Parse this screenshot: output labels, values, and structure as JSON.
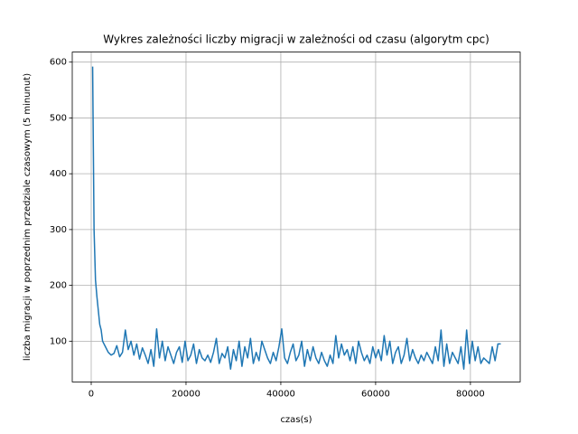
{
  "chart_data": {
    "type": "line",
    "title": "Wykres zależności liczby migracji w zależności od czasu (algorytm cpc)",
    "xlabel": "czas(s)",
    "ylabel": "liczba migracji w poprzednim  przedziale czasowym (5 minunut)",
    "xlim": [
      -4000,
      90500
    ],
    "ylim": [
      27,
      618
    ],
    "xticks": [
      0,
      20000,
      40000,
      60000,
      80000
    ],
    "yticks": [
      100,
      200,
      300,
      400,
      500,
      600
    ],
    "grid": true,
    "series": [
      {
        "color": "#1f77b4",
        "x": [
          300,
          600,
          900,
          1200,
          1500,
          1800,
          2100,
          2400,
          3000,
          3600,
          4200,
          4800,
          5400,
          6000,
          6600,
          7200,
          7800,
          8400,
          9000,
          9600,
          10200,
          10800,
          11400,
          12000,
          12600,
          13200,
          13800,
          14400,
          15000,
          15600,
          16200,
          16800,
          17400,
          18000,
          18600,
          19200,
          19800,
          20400,
          21000,
          21600,
          22200,
          22800,
          23400,
          24000,
          24600,
          25200,
          25800,
          26400,
          27000,
          27600,
          28200,
          28800,
          29400,
          30000,
          30600,
          31200,
          31800,
          32400,
          33000,
          33600,
          34200,
          34800,
          35400,
          36000,
          36600,
          37200,
          37800,
          38400,
          39000,
          39600,
          40200,
          40800,
          41400,
          42000,
          42600,
          43200,
          43800,
          44400,
          45000,
          45600,
          46200,
          46800,
          47400,
          48000,
          48600,
          49200,
          49800,
          50400,
          51000,
          51600,
          52200,
          52800,
          53400,
          54000,
          54600,
          55200,
          55800,
          56400,
          57000,
          57600,
          58200,
          58800,
          59400,
          60000,
          60600,
          61200,
          61800,
          62400,
          63000,
          63600,
          64200,
          64800,
          65400,
          66000,
          66600,
          67200,
          67800,
          68400,
          69000,
          69600,
          70200,
          70800,
          71400,
          72000,
          72600,
          73200,
          73800,
          74400,
          75000,
          75600,
          76200,
          76800,
          77400,
          78000,
          78600,
          79200,
          79800,
          80400,
          81000,
          81600,
          82200,
          82800,
          83400,
          84000,
          84600,
          85200,
          85800,
          86400
        ],
        "values": [
          592,
          300,
          210,
          180,
          155,
          130,
          120,
          100,
          90,
          80,
          75,
          78,
          92,
          72,
          80,
          120,
          85,
          100,
          75,
          95,
          68,
          88,
          75,
          60,
          85,
          55,
          122,
          70,
          100,
          65,
          90,
          75,
          60,
          80,
          90,
          62,
          100,
          65,
          75,
          95,
          60,
          85,
          70,
          65,
          75,
          62,
          80,
          105,
          60,
          78,
          70,
          90,
          50,
          85,
          65,
          100,
          55,
          90,
          70,
          105,
          60,
          80,
          65,
          100,
          85,
          70,
          60,
          80,
          65,
          90,
          122,
          70,
          60,
          80,
          95,
          65,
          75,
          100,
          55,
          85,
          65,
          90,
          70,
          60,
          80,
          65,
          55,
          75,
          60,
          110,
          70,
          95,
          75,
          85,
          65,
          90,
          60,
          100,
          80,
          65,
          75,
          60,
          90,
          70,
          85,
          65,
          110,
          75,
          100,
          60,
          80,
          90,
          60,
          75,
          105,
          65,
          85,
          70,
          60,
          75,
          65,
          80,
          70,
          60,
          90,
          65,
          120,
          55,
          95,
          60,
          80,
          70,
          60,
          90,
          50,
          120,
          60,
          100,
          65,
          90,
          60,
          70,
          65,
          60,
          90,
          65,
          95,
          95
        ]
      }
    ]
  }
}
